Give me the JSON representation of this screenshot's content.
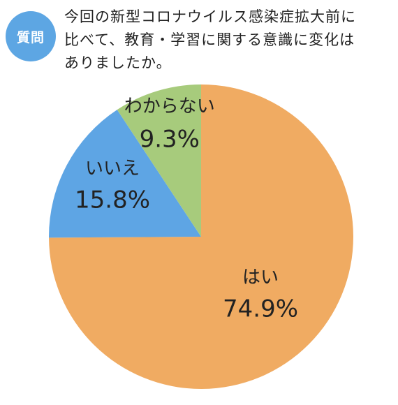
{
  "badge": {
    "label": "質問",
    "color": "#5da6e3"
  },
  "question": {
    "lines": [
      "今回の新型コロナウイルス感染症拡大前に",
      "比べて、教育・学習に関する意識に変化は",
      "ありましたか。"
    ]
  },
  "chart_data": {
    "type": "pie",
    "categories": [
      "はい",
      "いいえ",
      "わからない"
    ],
    "values": [
      74.9,
      15.8,
      9.3
    ],
    "value_labels": [
      "74.9%",
      "15.8%",
      "9.3%"
    ],
    "colors": [
      "#f0ab62",
      "#5ea5e4",
      "#a7cb7c"
    ],
    "start": "12 o'clock",
    "direction": "clockwise",
    "legend": "none"
  }
}
